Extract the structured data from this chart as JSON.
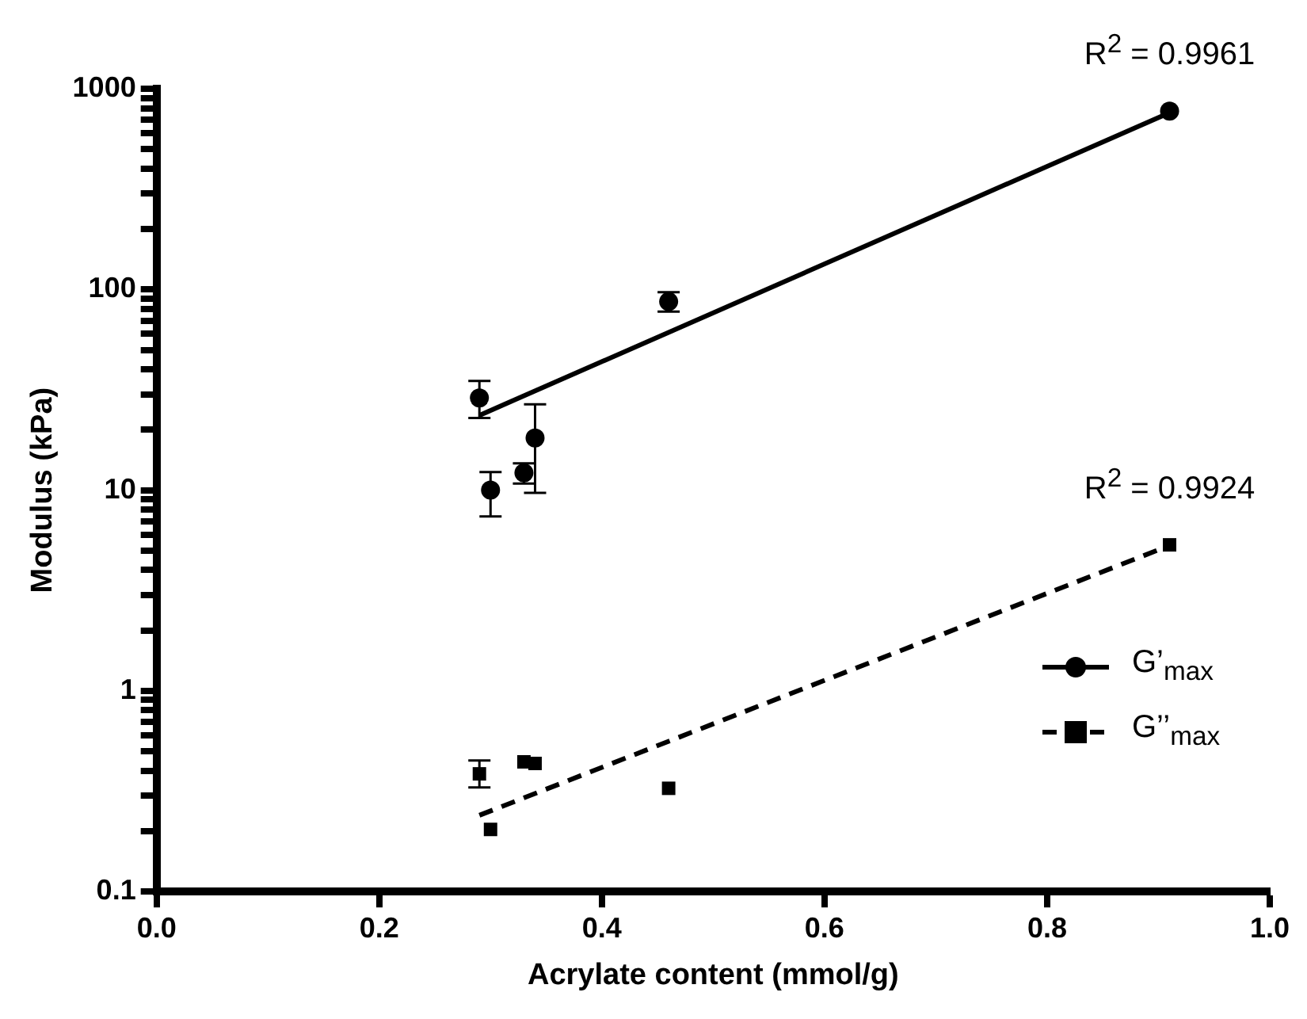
{
  "chart_data": {
    "type": "scatter",
    "xlabel": "Acrylate content (mmol/g)",
    "ylabel": "Modulus (kPa)",
    "log": "y",
    "grid": false,
    "legend": "right",
    "xlim": [
      0,
      1
    ],
    "xticks": [
      {
        "value": 0,
        "label": "0.0"
      },
      {
        "value": 0.2,
        "label": "0.2"
      },
      {
        "value": 0.4,
        "label": "0.4"
      },
      {
        "value": 0.6,
        "label": "0.6"
      },
      {
        "value": 0.8,
        "label": "0.8"
      },
      {
        "value": 1,
        "label": "1.0"
      }
    ],
    "ylim": [
      0.1,
      1000
    ],
    "yticks": [
      0.1,
      {
        "value": 0.2,
        "label": null
      },
      {
        "value": 0.3,
        "label": null
      },
      {
        "value": 0.4,
        "label": null
      },
      {
        "value": 0.5,
        "label": null
      },
      {
        "value": 0.6,
        "label": null
      },
      {
        "value": 0.7,
        "label": null
      },
      {
        "value": 0.8,
        "label": null
      },
      {
        "value": 0.9,
        "label": null
      },
      1,
      {
        "value": 2,
        "label": null
      },
      {
        "value": 3,
        "label": null
      },
      {
        "value": 4,
        "label": null
      },
      {
        "value": 5,
        "label": null
      },
      {
        "value": 6,
        "label": null
      },
      {
        "value": 7,
        "label": null
      },
      {
        "value": 8,
        "label": null
      },
      {
        "value": 9,
        "label": null
      },
      10,
      {
        "value": 20,
        "label": null
      },
      {
        "value": 30,
        "label": null
      },
      {
        "value": 40,
        "label": null
      },
      {
        "value": 50,
        "label": null
      },
      {
        "value": 60,
        "label": null
      },
      {
        "value": 70,
        "label": null
      },
      {
        "value": 80,
        "label": null
      },
      {
        "value": 90,
        "label": null
      },
      100,
      {
        "value": 200,
        "label": null
      },
      {
        "value": 300,
        "label": null
      },
      {
        "value": 400,
        "label": null
      },
      {
        "value": 500,
        "label": null
      },
      {
        "value": 600,
        "label": null
      },
      {
        "value": 700,
        "label": null
      },
      {
        "value": 800,
        "label": null
      },
      {
        "value": 900,
        "label": null
      },
      1000
    ],
    "series": [
      {
        "name": "G’$_{max}$",
        "marker": "circle",
        "color": "#000000",
        "x": [
          0.29,
          0.3,
          0.33,
          0.34,
          0.46,
          0.91
        ],
        "values": [
          28.8,
          10,
          12.2,
          18.2,
          87,
          773
        ],
        "errors": [
          [
            22.9,
            35
          ],
          [
            7.4,
            12.3
          ],
          [
            10.8,
            13.6
          ],
          [
            9.7,
            26.8
          ],
          [
            77.5,
            97
          ],
          null
        ]
      },
      {
        "type": "line",
        "marker": "none",
        "line_style": "solid",
        "color": "#000000",
        "x": [
          0.29,
          0.91
        ],
        "values": [
          23.6,
          760
        ]
      },
      {
        "name": "G’’$_{max}$",
        "marker": "square",
        "color": "#000000",
        "x": [
          0.29,
          0.3,
          0.33,
          0.34,
          0.46,
          0.91
        ],
        "values": [
          0.386,
          0.204,
          0.443,
          0.435,
          0.327,
          5.34
        ],
        "errors": [
          [
            0.33,
            0.45
          ],
          null,
          null,
          null,
          null,
          null
        ]
      },
      {
        "type": "line",
        "marker": "none",
        "line_style": "dashed",
        "color": "#000000",
        "x": [
          0.29,
          0.91
        ],
        "values": [
          0.24,
          5.3
        ]
      }
    ],
    "annotations": [
      {
        "text": "R$^{2}$ = 0.9961",
        "x": 0.91,
        "y": 773
      },
      {
        "text": "R$^{2}$ = 0.9924",
        "x": 0.91,
        "y": 5.34
      }
    ]
  }
}
